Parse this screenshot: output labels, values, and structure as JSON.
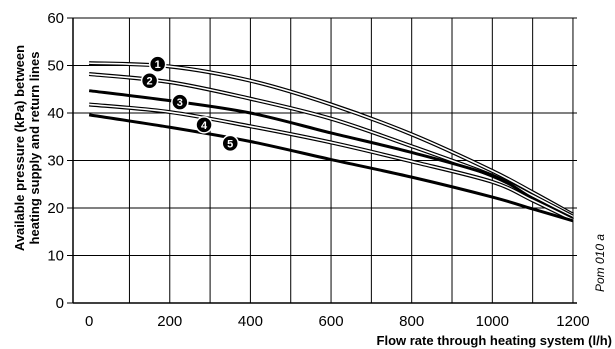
{
  "chart_data": {
    "type": "line",
    "xlabel": "Flow rate through heating system (l/h)",
    "ylabel_lines": [
      "Available pressure (kPa) between",
      "heating supply and return lines"
    ],
    "figure_code": "Pom 010 a",
    "xlim": [
      -40,
      1210
    ],
    "ylim": [
      0,
      60
    ],
    "x_ticks": [
      0,
      200,
      400,
      600,
      800,
      1000,
      1200
    ],
    "y_ticks": [
      0,
      10,
      20,
      30,
      40,
      50,
      60
    ],
    "x_grid": [
      100,
      200,
      300,
      400,
      500,
      600,
      700,
      800,
      900,
      1000,
      1100,
      1200
    ],
    "y_grid": [
      10,
      20,
      30,
      40,
      50,
      60
    ],
    "grid": true,
    "series": [
      {
        "name": "1",
        "style": "double",
        "x": [
          0,
          200,
          400,
          600,
          800,
          1000,
          1100,
          1200
        ],
        "y": [
          50.5,
          49.8,
          46.8,
          41.8,
          35.5,
          27.8,
          23.3,
          18.6
        ],
        "label_x": 170,
        "label_y": 50.3
      },
      {
        "name": "2",
        "style": "double",
        "x": [
          0,
          200,
          400,
          600,
          800,
          1000,
          1100,
          1200
        ],
        "y": [
          48.2,
          46.5,
          43.0,
          38.8,
          33.0,
          26.8,
          22.6,
          18.2
        ],
        "label_x": 150,
        "label_y": 46.8
      },
      {
        "name": "3",
        "style": "thick",
        "x": [
          0,
          200,
          400,
          600,
          800,
          1000,
          1100,
          1200
        ],
        "y": [
          44.7,
          42.6,
          40.0,
          35.8,
          31.7,
          26.8,
          22.0,
          17.8
        ],
        "label_x": 225,
        "label_y": 42.3
      },
      {
        "name": "4",
        "style": "double",
        "x": [
          0,
          200,
          400,
          600,
          800,
          1000,
          1100,
          1200
        ],
        "y": [
          41.8,
          40.2,
          37.2,
          33.8,
          29.8,
          25.5,
          21.6,
          17.5
        ],
        "label_x": 285,
        "label_y": 37.5
      },
      {
        "name": "5",
        "style": "thick",
        "x": [
          0,
          200,
          400,
          600,
          800,
          1000,
          1100,
          1200
        ],
        "y": [
          39.6,
          37.0,
          34.0,
          30.2,
          26.5,
          22.3,
          19.8,
          17.3
        ],
        "label_x": 350,
        "label_y": 33.6
      }
    ]
  }
}
